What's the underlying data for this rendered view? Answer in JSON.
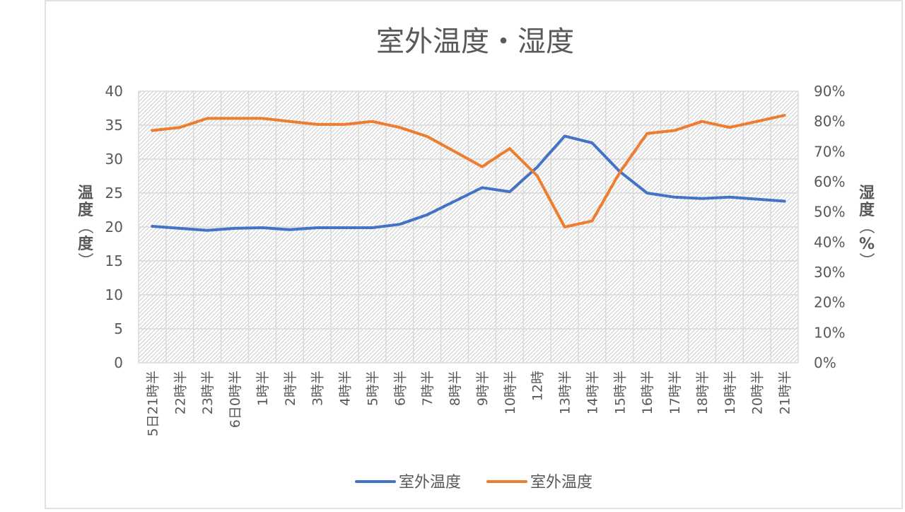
{
  "chart_data": {
    "type": "line",
    "title": "室外温度・湿度",
    "ylabel_left": "温度（度）",
    "ylabel_right": "湿度（%）",
    "left_axis": {
      "ylim": [
        0,
        40
      ],
      "ticks": [
        0,
        5,
        10,
        15,
        20,
        25,
        30,
        35,
        40
      ],
      "tick_labels": [
        "0",
        "5",
        "10",
        "15",
        "20",
        "25",
        "30",
        "35",
        "40"
      ]
    },
    "right_axis": {
      "ylim": [
        0,
        90
      ],
      "ticks": [
        0,
        10,
        20,
        30,
        40,
        50,
        60,
        70,
        80,
        90
      ],
      "tick_labels": [
        "0%",
        "10%",
        "20%",
        "30%",
        "40%",
        "50%",
        "60%",
        "70%",
        "80%",
        "90%"
      ]
    },
    "grid": true,
    "legend_position": "bottom",
    "categories": [
      "5日21時半",
      "22時半",
      "23時半",
      "6日0時半",
      "1時半",
      "2時半",
      "3時半",
      "4時半",
      "5時半",
      "6時半",
      "7時半",
      "8時半",
      "9時半",
      "10時半",
      "12時",
      "13時半",
      "14時半",
      "15時半",
      "16時半",
      "17時半",
      "18時半",
      "19時半",
      "20時半",
      "21時半"
    ],
    "series": [
      {
        "name": "室外温度",
        "axis": "left",
        "color": "#4472C4",
        "values": [
          20.1,
          19.8,
          19.5,
          19.8,
          19.9,
          19.6,
          19.9,
          19.9,
          19.9,
          20.4,
          21.8,
          23.8,
          25.8,
          25.2,
          28.8,
          33.4,
          32.4,
          28.2,
          25.0,
          24.4,
          24.2,
          24.4,
          24.1,
          23.8
        ]
      },
      {
        "name": "室外温度",
        "axis": "right",
        "color": "#ED7D31",
        "values": [
          77,
          78,
          81,
          81,
          81,
          80,
          79,
          79,
          80,
          78,
          75,
          70,
          65,
          71,
          62,
          45,
          47,
          63,
          76,
          77,
          80,
          78,
          80,
          82
        ]
      }
    ]
  }
}
